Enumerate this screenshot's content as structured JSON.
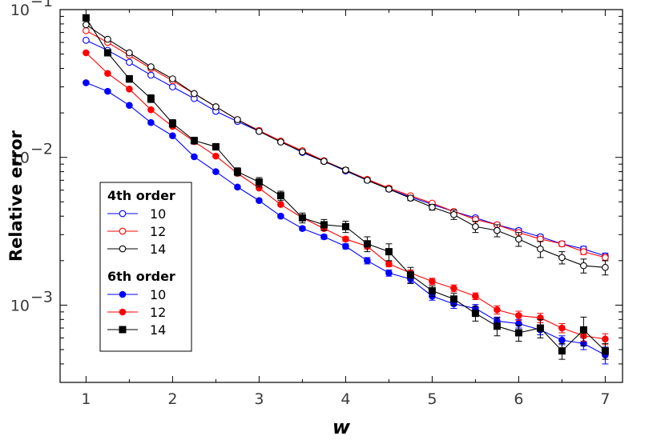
{
  "chart_data": {
    "type": "line",
    "title": "",
    "xlabel": "w",
    "ylabel": "Relative error",
    "yscale": "log",
    "xlim": [
      0.7,
      7.2
    ],
    "ylim": [
      0.0003,
      0.1
    ],
    "x_ticks": [
      1,
      2,
      3,
      4,
      5,
      6,
      7
    ],
    "x_tick_labels": [
      "1",
      "2",
      "3",
      "4",
      "5",
      "6",
      "7"
    ],
    "y_ticks": [
      {
        "value": 0.1,
        "base": "10",
        "exp": "−1"
      },
      {
        "value": 0.01,
        "base": "10",
        "exp": "−2"
      },
      {
        "value": 0.001,
        "base": "10",
        "exp": "−3"
      }
    ],
    "grid": false,
    "legend_placement": "left-middle",
    "x": [
      1,
      1.25,
      1.5,
      1.75,
      2,
      2.25,
      2.5,
      2.75,
      3,
      3.25,
      3.5,
      3.75,
      4,
      4.25,
      4.5,
      4.75,
      5,
      5.25,
      5.5,
      5.75,
      6,
      6.25,
      6.5,
      6.75,
      7
    ],
    "groups": [
      {
        "name": "4th order",
        "series": [
          {
            "name": "10",
            "color": "#0000ff",
            "marker": "open-circle",
            "values": [
              0.062,
              0.053,
              0.044,
              0.036,
              0.03,
              0.025,
              0.0205,
              0.0175,
              0.015,
              0.0128,
              0.0108,
              0.0094,
              0.0081,
              0.007,
              0.0061,
              0.0054,
              0.0048,
              0.0043,
              0.0039,
              0.0035,
              0.0032,
              0.0029,
              0.0026,
              0.0024,
              0.00215
            ],
            "errors": [
              0.0008,
              0.0007,
              0.0006,
              0.0005,
              0.0004,
              0.0003,
              0.0003,
              0.0002,
              0.0002,
              0.0002,
              0.0002,
              0.0002,
              0.0002,
              0.0002,
              0.0002,
              0.0001,
              0.0001,
              0.0001,
              0.0001,
              0.0001,
              0.0001,
              0.0001,
              0.0001,
              0.0001,
              0.0001
            ]
          },
          {
            "name": "12",
            "color": "#ff0000",
            "marker": "open-circle",
            "values": [
              0.072,
              0.06,
              0.049,
              0.04,
              0.033,
              0.027,
              0.022,
              0.018,
              0.0152,
              0.0129,
              0.0111,
              0.0095,
              0.0082,
              0.0071,
              0.0062,
              0.0055,
              0.0049,
              0.0043,
              0.0038,
              0.0035,
              0.0031,
              0.0028,
              0.0026,
              0.0023,
              0.0021
            ],
            "errors": [
              0.0008,
              0.0007,
              0.0006,
              0.0005,
              0.0004,
              0.0003,
              0.0003,
              0.0002,
              0.0002,
              0.0002,
              0.0002,
              0.0002,
              0.0002,
              0.0002,
              0.0002,
              0.0001,
              0.0001,
              0.0001,
              0.0001,
              0.0001,
              0.0001,
              0.0001,
              0.0001,
              0.0001,
              0.0001
            ]
          },
          {
            "name": "14",
            "color": "#000000",
            "marker": "open-circle",
            "values": [
              0.079,
              0.063,
              0.051,
              0.041,
              0.034,
              0.027,
              0.022,
              0.018,
              0.015,
              0.0127,
              0.0109,
              0.0094,
              0.0082,
              0.007,
              0.0061,
              0.0053,
              0.0046,
              0.0041,
              0.0034,
              0.0032,
              0.0028,
              0.0024,
              0.0021,
              0.00185,
              0.0018
            ],
            "errors": [
              0.0015,
              0.0012,
              0.001,
              0.0008,
              0.0006,
              0.0005,
              0.0004,
              0.0003,
              0.0003,
              0.0003,
              0.0003,
              0.0003,
              0.0003,
              0.0002,
              0.0002,
              0.0002,
              0.0002,
              0.0003,
              0.0003,
              0.0003,
              0.0003,
              0.0003,
              0.0002,
              0.0002,
              0.0002
            ]
          }
        ]
      },
      {
        "name": "6th order",
        "series": [
          {
            "name": "10",
            "color": "#0000ff",
            "marker": "filled-circle",
            "values": [
              0.032,
              0.028,
              0.0225,
              0.0172,
              0.014,
              0.0101,
              0.008,
              0.0063,
              0.0051,
              0.004,
              0.0033,
              0.0029,
              0.0025,
              0.002,
              0.00165,
              0.0015,
              0.00115,
              0.00102,
              0.00095,
              0.00078,
              0.00075,
              0.00068,
              0.00058,
              0.00055,
              0.00046
            ],
            "errors": [
              0.0005,
              0.0004,
              0.0003,
              0.0003,
              0.0002,
              0.0002,
              0.0001,
              0.0001,
              0.0001,
              0.0001,
              0.0001,
              0.0001,
              0.0001,
              0.0001,
              8e-05,
              8e-05,
              7e-05,
              7e-05,
              6e-05,
              5e-05,
              5e-05,
              5e-05,
              4e-05,
              5e-05,
              6e-05
            ]
          },
          {
            "name": "12",
            "color": "#ff0000",
            "marker": "filled-circle",
            "values": [
              0.051,
              0.037,
              0.029,
              0.021,
              0.0162,
              0.0128,
              0.0102,
              0.0078,
              0.0062,
              0.0048,
              0.0039,
              0.0033,
              0.0028,
              0.0025,
              0.0019,
              0.00165,
              0.00145,
              0.0013,
              0.00115,
              0.00093,
              0.00085,
              0.00082,
              0.0007,
              0.00062,
              0.00059
            ],
            "errors": [
              0.0008,
              0.0005,
              0.0004,
              0.0003,
              0.0003,
              0.0002,
              0.0002,
              0.0001,
              0.0001,
              0.0001,
              0.0001,
              0.0001,
              0.0001,
              0.0001,
              8e-05,
              8e-05,
              7e-05,
              7e-05,
              6e-05,
              6e-05,
              6e-05,
              6e-05,
              5e-05,
              5e-05,
              5e-05
            ]
          },
          {
            "name": "14",
            "color": "#000000",
            "marker": "filled-square",
            "values": [
              0.088,
              0.051,
              0.034,
              0.025,
              0.017,
              0.013,
              0.0118,
              0.008,
              0.0068,
              0.0055,
              0.0039,
              0.0035,
              0.0034,
              0.0026,
              0.0023,
              0.0016,
              0.00125,
              0.0011,
              0.00088,
              0.00072,
              0.00065,
              0.0007,
              0.00049,
              0.00068,
              0.00049
            ],
            "errors": [
              0.004,
              0.002,
              0.0018,
              0.0015,
              0.001,
              0.0007,
              0.0006,
              0.0005,
              0.0005,
              0.0004,
              0.0003,
              0.0003,
              0.0003,
              0.0003,
              0.0003,
              0.0002,
              0.0001,
              0.0001,
              0.0001,
              0.0001,
              8e-05,
              0.0001,
              6e-05,
              0.00015,
              6e-05
            ]
          }
        ]
      }
    ]
  }
}
